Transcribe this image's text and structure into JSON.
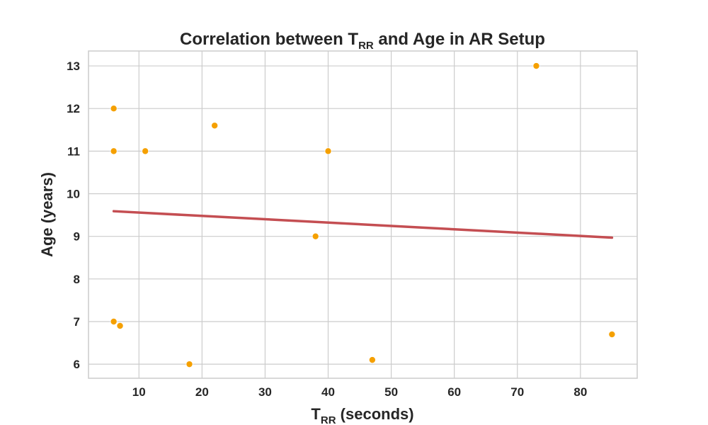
{
  "chart_data": {
    "type": "scatter",
    "title": {
      "main_before": "Correlation between T",
      "main_sub": "RR",
      "main_after": " and Age in AR Setup"
    },
    "xlabel": {
      "main": "T",
      "sub": "RR",
      "after": " (seconds)"
    },
    "ylabel": "Age (years)",
    "xlim": [
      2,
      89
    ],
    "ylim": [
      5.67,
      13.35
    ],
    "xticks": [
      10,
      20,
      30,
      40,
      50,
      60,
      70,
      80
    ],
    "yticks": [
      6,
      7,
      8,
      9,
      10,
      11,
      12,
      13
    ],
    "xtick_labels": [
      "10",
      "20",
      "30",
      "40",
      "50",
      "60",
      "70",
      "80"
    ],
    "ytick_labels": [
      "6",
      "7",
      "8",
      "9",
      "10",
      "11",
      "12",
      "13"
    ],
    "grid": true,
    "points": [
      {
        "x": 6,
        "y": 12
      },
      {
        "x": 6,
        "y": 11
      },
      {
        "x": 11,
        "y": 11
      },
      {
        "x": 22,
        "y": 11.6
      },
      {
        "x": 40,
        "y": 11
      },
      {
        "x": 73,
        "y": 13
      },
      {
        "x": 38,
        "y": 9
      },
      {
        "x": 6,
        "y": 7
      },
      {
        "x": 7,
        "y": 6.9
      },
      {
        "x": 18,
        "y": 6
      },
      {
        "x": 47,
        "y": 6.1
      },
      {
        "x": 85,
        "y": 6.7
      }
    ],
    "regression_line": {
      "x": [
        6,
        85
      ],
      "y": [
        9.59,
        8.97
      ]
    },
    "colors": {
      "points": "#f5a000",
      "line": "#c44e52",
      "grid": "#cccccc",
      "spine": "#cccccc",
      "text": "#262626"
    }
  }
}
